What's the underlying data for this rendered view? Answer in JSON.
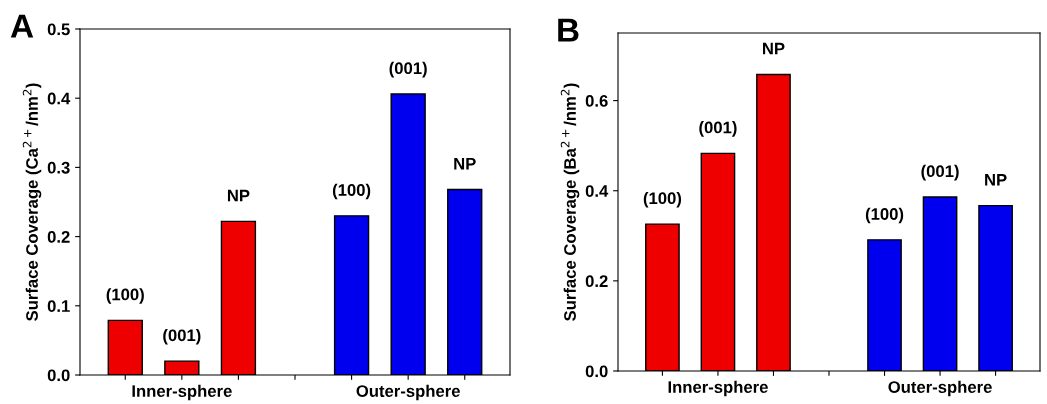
{
  "chart_data": [
    {
      "type": "bar",
      "title": "A",
      "ylabel": "Surface Coverage (Ca$^{2+}$/nm$^{2}$)",
      "categories": [
        null,
        "Inner-sphere",
        null,
        null,
        null,
        "Outer-sphere",
        null
      ],
      "values": [
        0.079,
        0.02,
        0.222,
        null,
        0.23,
        0.406,
        0.268
      ],
      "colors": [
        "#ee0000",
        "#ee0000",
        "#ee0000",
        null,
        "#0000ee",
        "#0000ee",
        "#0000ee"
      ],
      "annotations": [
        "(100)",
        "(001)",
        "NP",
        "(100)",
        "(001)",
        "NP"
      ],
      "ylim": [
        0,
        0.5
      ],
      "yticks": [
        {
          "value": 0,
          "label": "0.0"
        },
        0.1,
        0.2,
        0.3,
        0.4,
        0.5
      ],
      "grid": false,
      "legend": false
    },
    {
      "type": "bar",
      "title": "B",
      "ylabel": "Surface Coverage (Ba$^{2+}$/nm$^{2}$)",
      "categories": [
        null,
        "Inner-sphere",
        null,
        null,
        null,
        "Outer-sphere",
        null
      ],
      "values": [
        0.326,
        0.483,
        0.658,
        null,
        0.291,
        0.386,
        0.367
      ],
      "colors": [
        "#ee0000",
        "#ee0000",
        "#ee0000",
        null,
        "#0000ee",
        "#0000ee",
        "#0000ee"
      ],
      "annotations": [
        "(100)",
        "(001)",
        "NP",
        "(100)",
        "(001)",
        "NP"
      ],
      "ylim": [
        0,
        0.75
      ],
      "yticks": [
        {
          "value": 0,
          "label": "0.0"
        },
        0.2,
        0.4,
        0.6
      ],
      "grid": false,
      "legend": false
    }
  ]
}
